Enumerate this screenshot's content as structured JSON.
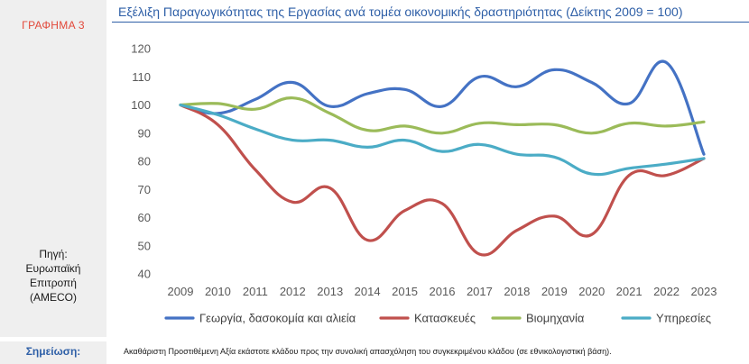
{
  "side": {
    "graph_label": "ΓΡΑΦΗΜΑ 3",
    "source_lines": [
      "Πηγή:",
      "Ευρωπαϊκή",
      "Επιτροπή",
      "(AMECO)"
    ]
  },
  "note": {
    "label": "Σημείωση:",
    "text": "Ακαθάριστη Προστιθέμενη Αξία εκάστοτε κλάδου προς την συνολική απασχόληση του συγκεκριμένου κλάδου (σε εθνικολογιστική βάση)."
  },
  "chart_data": {
    "type": "line",
    "title": "Εξέλιξη Παραγωγικότητας της Εργασίας ανά τομέα οικονομικής δραστηριότητας (Δείκτης 2009 = 100)",
    "x": [
      "2009",
      "2010",
      "2011",
      "2012",
      "2013",
      "2014",
      "2015",
      "2016",
      "2017",
      "2018",
      "2019",
      "2020",
      "2021",
      "2022",
      "2023"
    ],
    "ylim": [
      40,
      120
    ],
    "yticks": [
      40,
      50,
      60,
      70,
      80,
      90,
      100,
      110,
      120
    ],
    "grid": false,
    "legend": "bottom",
    "series": [
      {
        "name": "Γεωργία, δασοκομία και αλιεία",
        "color": "#4472c4",
        "values": [
          100,
          97,
          102,
          108,
          99.5,
          104,
          105.5,
          99.5,
          110,
          106.5,
          112.5,
          108,
          100.5,
          115,
          82.5
        ]
      },
      {
        "name": "Κατασκευές",
        "color": "#c0504d",
        "values": [
          100,
          93,
          77,
          65.5,
          70.5,
          52,
          62.5,
          65,
          47,
          55.5,
          60.5,
          54,
          75,
          75,
          81
        ]
      },
      {
        "name": "Βιομηχανία",
        "color": "#9bbb59",
        "values": [
          100,
          100.5,
          98.5,
          102.5,
          97,
          91,
          92.5,
          90,
          93.5,
          93,
          93,
          90,
          93.5,
          92.5,
          94
        ]
      },
      {
        "name": "Υπηρεσίες",
        "color": "#4bacc6",
        "values": [
          100,
          96.5,
          91.5,
          87.5,
          87.5,
          85,
          87.5,
          83.5,
          86,
          82.5,
          81.5,
          75.5,
          77.5,
          79,
          81
        ]
      }
    ]
  }
}
